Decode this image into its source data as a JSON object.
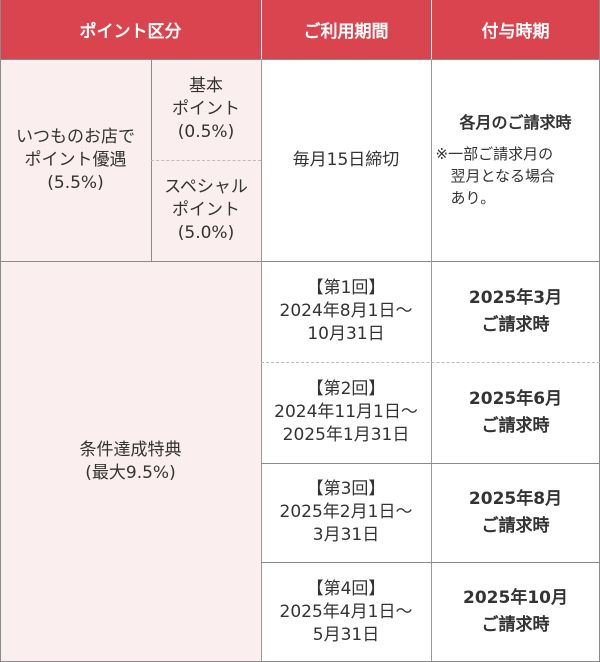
{
  "header": {
    "col1": "ポイント区分",
    "col2": "ご利用期間",
    "col3": "付与時期"
  },
  "row1": {
    "category": [
      "いつものお店で",
      "ポイント優遇",
      "(5.5%)"
    ],
    "basic": [
      "基本",
      "ポイント",
      "(0.5%)"
    ],
    "special": [
      "スペシャル",
      "ポイント",
      "(5.0%)"
    ],
    "period": "毎月15日締切",
    "grant_title": "各月のご請求時",
    "grant_note": [
      "※一部ご請求月の",
      "翌月となる場合",
      "あり。"
    ]
  },
  "row2": {
    "category": [
      "条件達成特典",
      "(最大9.5%)"
    ],
    "periods": [
      {
        "label": "【第1回】",
        "start": "2024年8月1日〜",
        "end": "10月31日",
        "grant": [
          "2025年3月",
          "ご請求時"
        ]
      },
      {
        "label": "【第2回】",
        "start": "2024年11月1日〜",
        "end": "2025年1月31日",
        "grant": [
          "2025年6月",
          "ご請求時"
        ]
      },
      {
        "label": "【第3回】",
        "start": "2025年2月1日〜",
        "end": "3月31日",
        "grant": [
          "2025年8月",
          "ご請求時"
        ]
      },
      {
        "label": "【第4回】",
        "start": "2025年4月1日〜",
        "end": "5月31日",
        "grant": [
          "2025年10月",
          "ご請求時"
        ]
      }
    ]
  }
}
